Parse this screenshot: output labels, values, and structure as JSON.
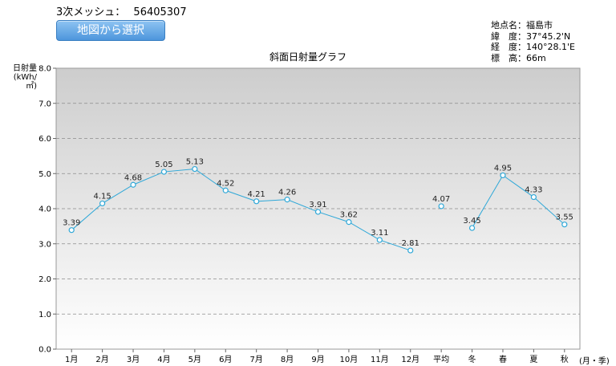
{
  "header": {
    "mesh_label": "3次メッシュ：",
    "mesh_code": "56405307",
    "map_button": "地図から選択"
  },
  "location": {
    "name_label": "地点名：",
    "name": "福島市",
    "lat_label": "緯　度：",
    "lat": "37°45.2'N",
    "lon_label": "経　度：",
    "lon": "140°28.1'E",
    "elev_label": "標　高：",
    "elev": "66m"
  },
  "chart_data": {
    "type": "line",
    "title": "斜面日射量グラフ",
    "ylabel_line1": "日射量",
    "ylabel_line2": "(kWh/㎡)",
    "xunit": "(月・季)",
    "ylim": [
      0,
      8
    ],
    "yticks": [
      "0.0",
      "1.0",
      "2.0",
      "3.0",
      "4.0",
      "5.0",
      "6.0",
      "7.0",
      "8.0"
    ],
    "categories": [
      "1月",
      "2月",
      "3月",
      "4月",
      "5月",
      "6月",
      "7月",
      "8月",
      "9月",
      "10月",
      "11月",
      "12月",
      "平均",
      "冬",
      "春",
      "夏",
      "秋"
    ],
    "values": [
      3.39,
      4.15,
      4.68,
      5.05,
      5.13,
      4.52,
      4.21,
      4.26,
      3.91,
      3.62,
      3.11,
      2.81,
      4.07,
      3.45,
      4.95,
      4.33,
      3.55
    ],
    "value_labels": [
      "3.39",
      "4.15",
      "4.68",
      "5.05",
      "5.13",
      "4.52",
      "4.21",
      "4.26",
      "3.91",
      "3.62",
      "3.11",
      "2.81",
      "4.07",
      "3.45",
      "4.95",
      "4.33",
      "3.55"
    ],
    "segments": [
      [
        0,
        11
      ],
      [
        12,
        12
      ],
      [
        13,
        16
      ]
    ],
    "grid": true,
    "line_color": "#2fa8d8"
  }
}
